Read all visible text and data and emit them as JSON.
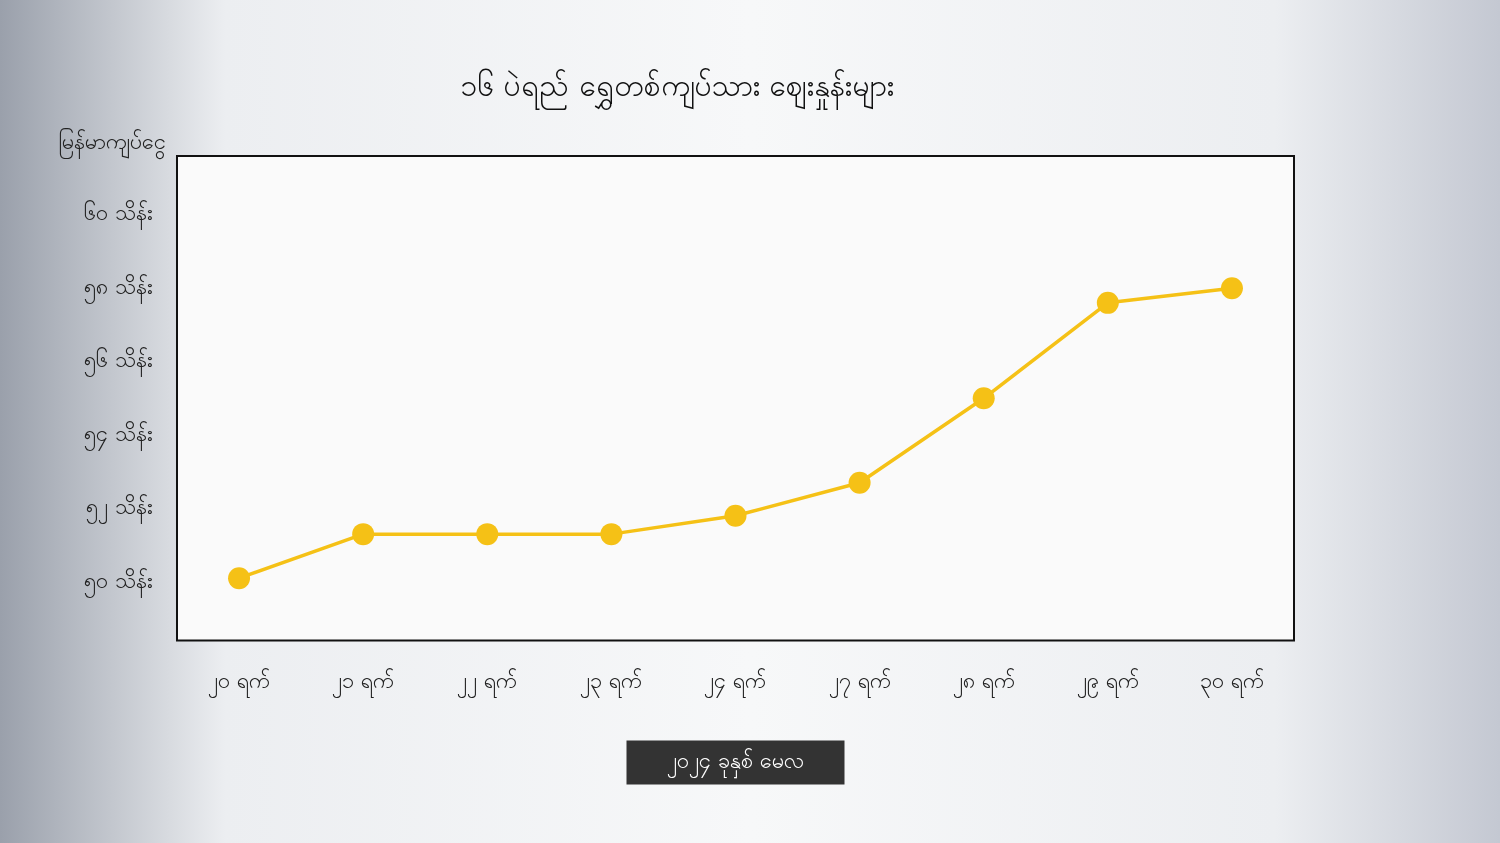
{
  "chart_data": {
    "type": "line",
    "title": "၁၆ ပဲရည် ရွှေတစ်ကျပ်သား ဈေးနှုန်းများ",
    "ylabel": "မြန်မာကျပ်ငွေ",
    "xlabel": "၂၀၂၄ ခုနှစ် မေလ",
    "categories": [
      "၂၀ ရက်",
      "၂၁ ရက်",
      "၂၂ ရက်",
      "၂၃ ရက်",
      "၂၄ ရက်",
      "၂၇ ရက်",
      "၂၈ ရက်",
      "၂၉ ရက်",
      "၃၀ ရက်"
    ],
    "values": [
      50.1,
      51.3,
      51.3,
      51.3,
      51.8,
      52.7,
      55.0,
      57.6,
      58.0
    ],
    "color": "#f5c116",
    "marker": "circle",
    "line_style": "solid",
    "grid": false,
    "legend": false,
    "ylim": [
      48.4,
      61.6
    ],
    "yticks": [
      {
        "value": 50,
        "label": "၅၀ သိန်း"
      },
      {
        "value": 52,
        "label": "၅၂ သိန်း"
      },
      {
        "value": 54,
        "label": "၅၄ သိန်း"
      },
      {
        "value": 56,
        "label": "၅၆ သိန်း"
      },
      {
        "value": 58,
        "label": "၅၈ သိန်း"
      },
      {
        "value": 60,
        "label": "၆၀ သိန်း"
      }
    ]
  }
}
